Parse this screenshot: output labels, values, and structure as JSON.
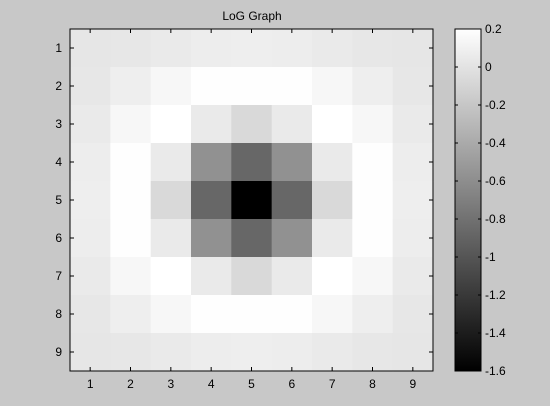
{
  "window": {
    "background": "#c8c8c8"
  },
  "chart_data": {
    "type": "heatmap",
    "title": "LoG Graph",
    "xlabel": "",
    "ylabel": "",
    "x_ticks": [
      "1",
      "2",
      "3",
      "4",
      "5",
      "6",
      "7",
      "8",
      "9"
    ],
    "y_ticks": [
      "1",
      "2",
      "3",
      "4",
      "5",
      "6",
      "7",
      "8",
      "9"
    ],
    "colormap": "gray",
    "clim": [
      -1.6,
      0.2
    ],
    "colorbar_ticks": [
      "0.2",
      "0",
      "-0.2",
      "-0.4",
      "-0.6",
      "-0.8",
      "-1",
      "-1.2",
      "-1.4",
      "-1.6"
    ],
    "colorbar_tick_values": [
      0.2,
      0,
      -0.2,
      -0.4,
      -0.6,
      -0.8,
      -1.0,
      -1.2,
      -1.4,
      -1.6
    ],
    "values": [
      [
        0.02,
        0.03,
        0.05,
        0.07,
        0.08,
        0.07,
        0.05,
        0.03,
        0.02
      ],
      [
        0.03,
        0.08,
        0.14,
        0.19,
        0.19,
        0.19,
        0.14,
        0.08,
        0.03
      ],
      [
        0.05,
        0.14,
        0.2,
        0.05,
        -0.07,
        0.05,
        0.2,
        0.14,
        0.05
      ],
      [
        0.07,
        0.19,
        0.05,
        -0.58,
        -0.87,
        -0.58,
        0.05,
        0.19,
        0.07
      ],
      [
        0.08,
        0.19,
        -0.07,
        -0.87,
        -1.6,
        -0.87,
        -0.07,
        0.19,
        0.08
      ],
      [
        0.07,
        0.19,
        0.05,
        -0.58,
        -0.87,
        -0.58,
        0.05,
        0.19,
        0.07
      ],
      [
        0.05,
        0.14,
        0.2,
        0.05,
        -0.07,
        0.05,
        0.2,
        0.14,
        0.05
      ],
      [
        0.03,
        0.08,
        0.14,
        0.19,
        0.19,
        0.19,
        0.14,
        0.08,
        0.03
      ],
      [
        0.02,
        0.03,
        0.05,
        0.07,
        0.08,
        0.07,
        0.05,
        0.03,
        0.02
      ]
    ]
  }
}
